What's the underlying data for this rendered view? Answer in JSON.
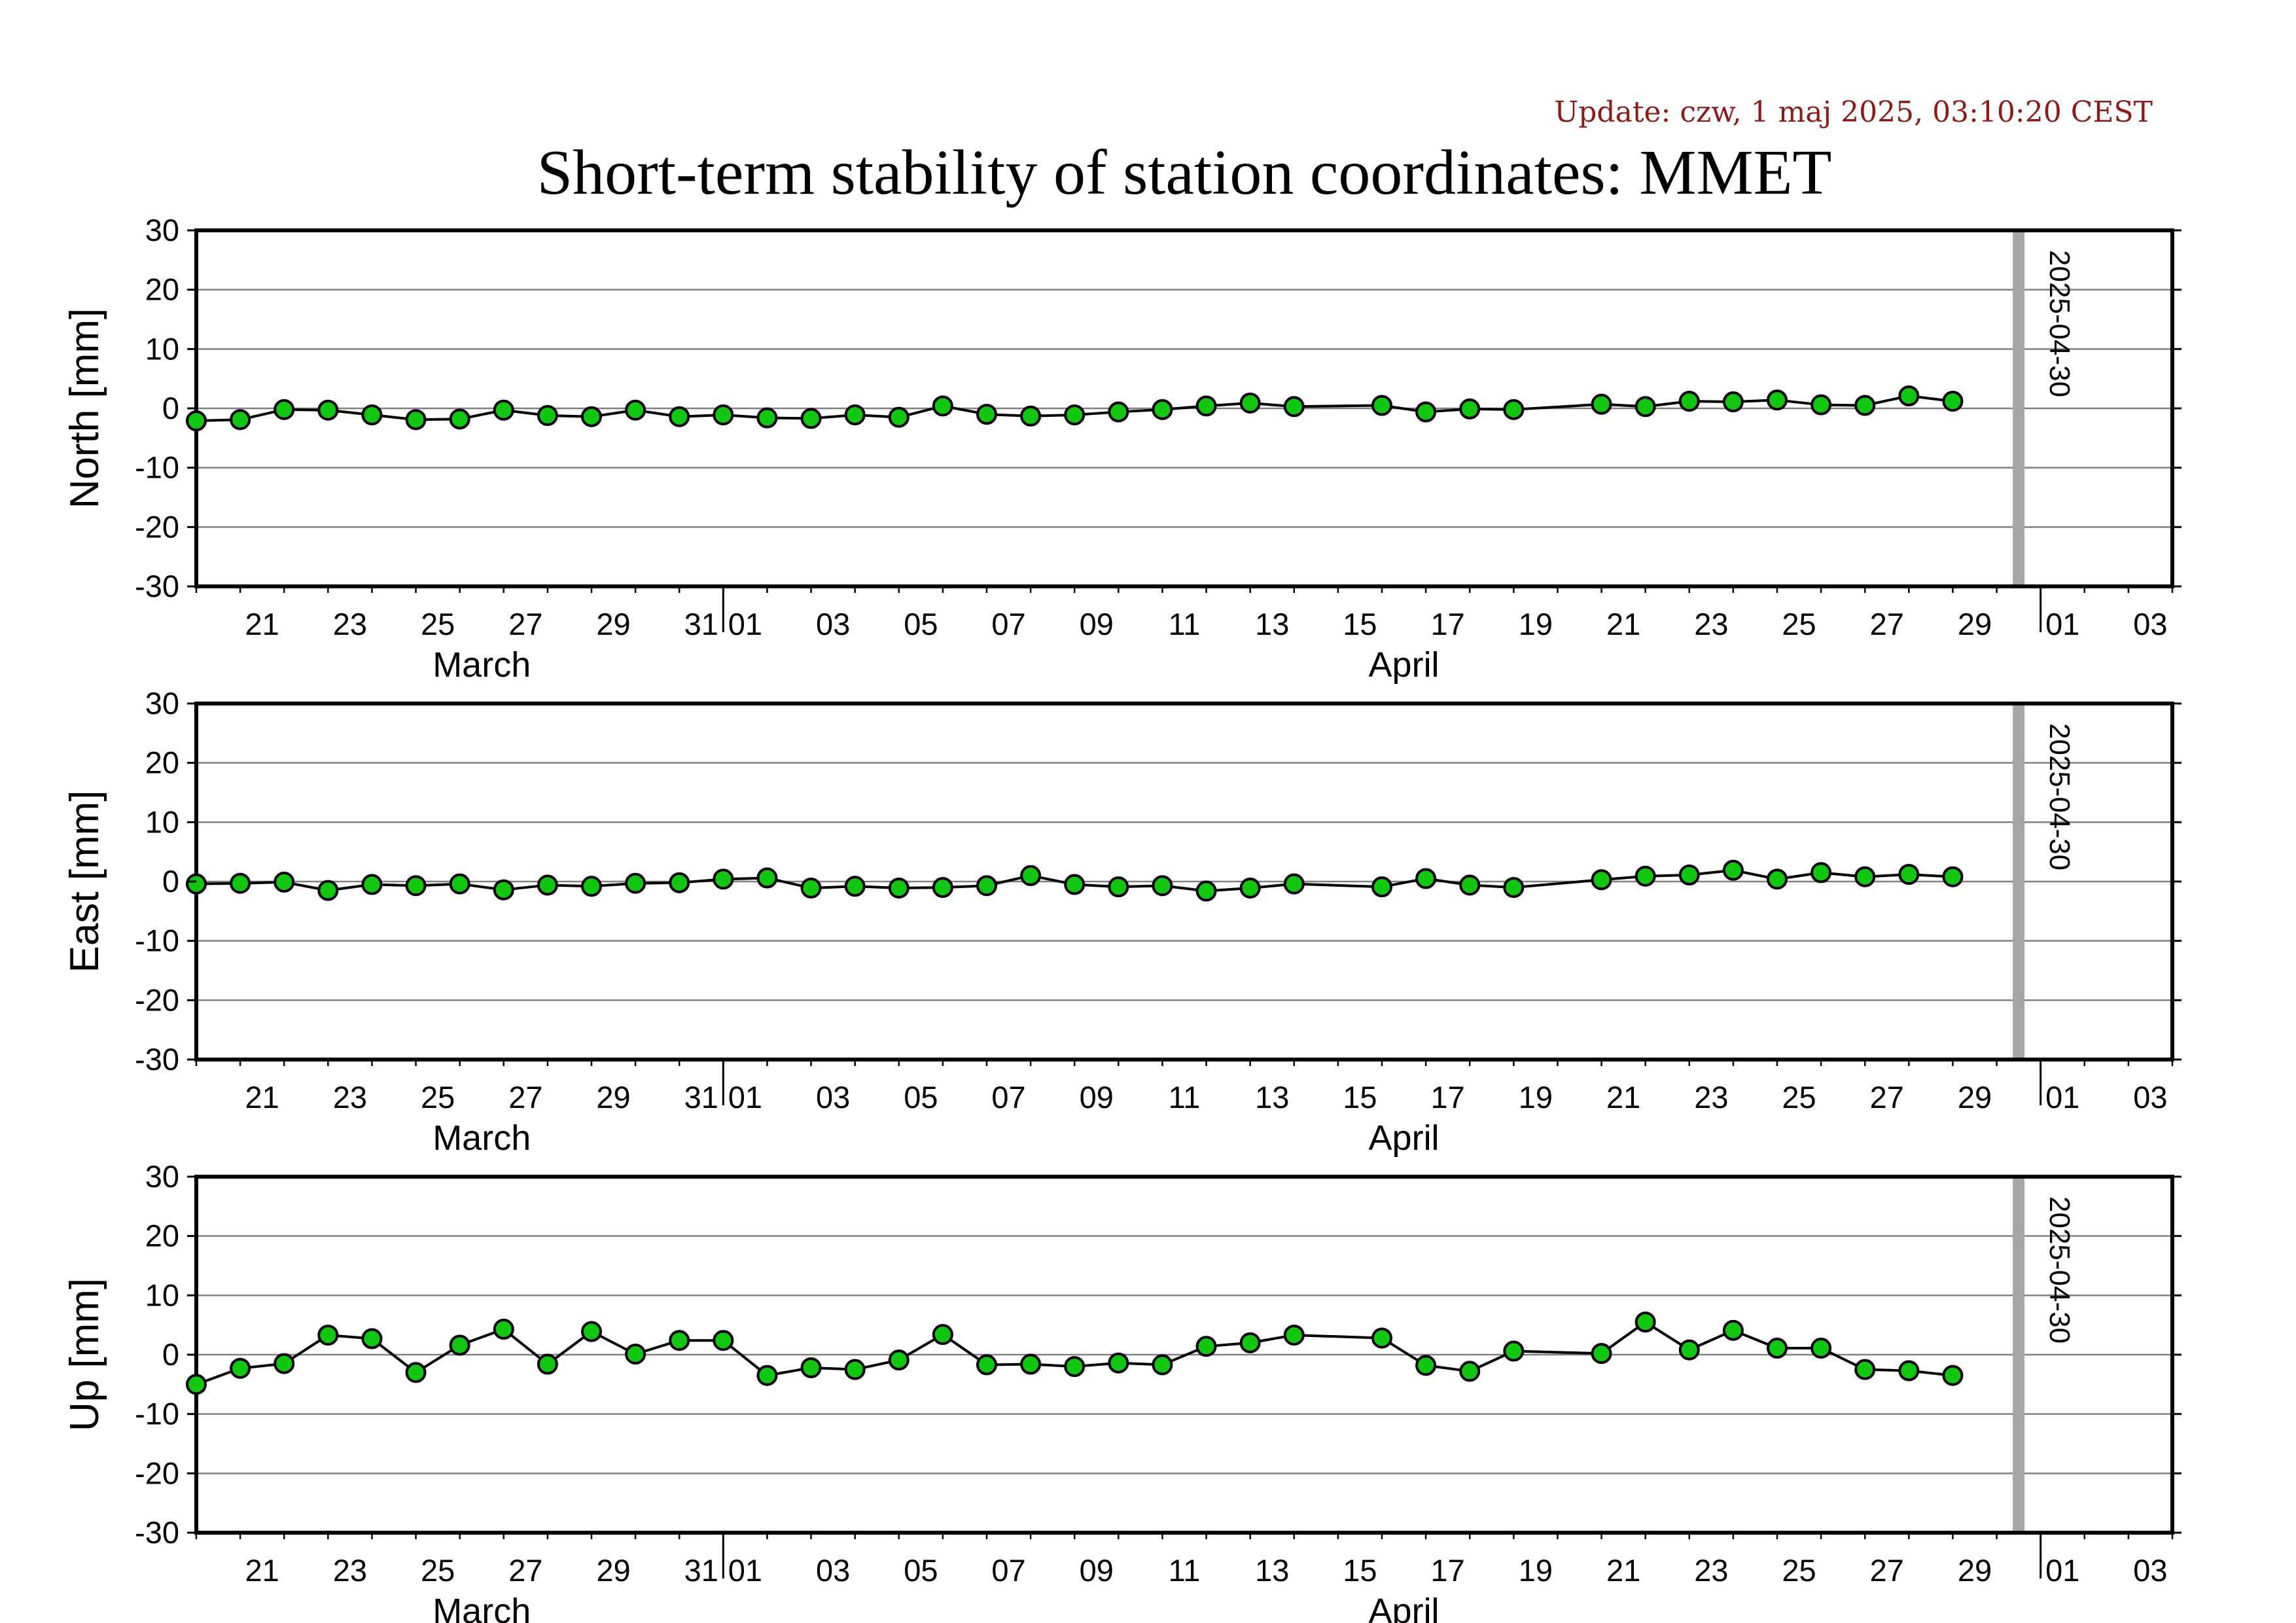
{
  "header": {
    "update": "Update: czw, 1 maj 2025, 03:10:20 CEST",
    "title": "Short-term stability of station coordinates: MMET"
  },
  "colors": {
    "marker_fill": "#11c711",
    "marker_stroke": "#000000",
    "line": "#000000",
    "gridline": "#808080",
    "date_marker": "#a6a6a6",
    "update_text": "#8b1a1a"
  },
  "axis": {
    "x_start": "2025-03-20",
    "x_end": "2025-05-04",
    "x_tick_dates": [
      "2025-03-21",
      "2025-03-23",
      "2025-03-25",
      "2025-03-27",
      "2025-03-29",
      "2025-03-31",
      "2025-04-01",
      "2025-04-03",
      "2025-04-05",
      "2025-04-07",
      "2025-04-09",
      "2025-04-11",
      "2025-04-13",
      "2025-04-15",
      "2025-04-17",
      "2025-04-19",
      "2025-04-21",
      "2025-04-23",
      "2025-04-25",
      "2025-04-27",
      "2025-04-29",
      "2025-05-01",
      "2025-05-03"
    ],
    "x_tick_labels": [
      "21",
      "23",
      "25",
      "27",
      "29",
      "31",
      "01",
      "03",
      "05",
      "07",
      "09",
      "11",
      "13",
      "15",
      "17",
      "19",
      "21",
      "23",
      "25",
      "27",
      "29",
      "01",
      "03"
    ],
    "month_boundaries": [
      "2025-04-01",
      "2025-05-01"
    ],
    "month_labels": [
      {
        "date": "2025-03-26",
        "text": "March"
      },
      {
        "date": "2025-04-16",
        "text": "April"
      }
    ],
    "ylim": [
      -30,
      30
    ],
    "y_ticks": [
      30,
      20,
      10,
      0,
      -10,
      -20,
      -30
    ],
    "y_tick_labels": [
      "30",
      "20",
      "10",
      "0",
      "-10",
      "-20",
      "-30"
    ],
    "date_marker": "2025-04-30",
    "date_marker_label": "2025-04-30"
  },
  "chart_data": [
    {
      "type": "line",
      "ylabel": "North [mm]",
      "ylim": [
        -30,
        30
      ],
      "grid": true,
      "x": [
        "2025-03-20",
        "2025-03-21",
        "2025-03-22",
        "2025-03-23",
        "2025-03-24",
        "2025-03-25",
        "2025-03-26",
        "2025-03-27",
        "2025-03-28",
        "2025-03-29",
        "2025-03-30",
        "2025-03-31",
        "2025-04-01",
        "2025-04-02",
        "2025-04-03",
        "2025-04-04",
        "2025-04-05",
        "2025-04-06",
        "2025-04-07",
        "2025-04-08",
        "2025-04-09",
        "2025-04-10",
        "2025-04-11",
        "2025-04-12",
        "2025-04-13",
        "2025-04-14",
        "2025-04-16",
        "2025-04-17",
        "2025-04-18",
        "2025-04-19",
        "2025-04-21",
        "2025-04-22",
        "2025-04-23",
        "2025-04-24",
        "2025-04-25",
        "2025-04-26",
        "2025-04-27",
        "2025-04-28",
        "2025-04-29"
      ],
      "values": [
        -2.1,
        -1.9,
        -0.2,
        -0.3,
        -1.1,
        -1.9,
        -1.8,
        -0.3,
        -1.2,
        -1.4,
        -0.3,
        -1.4,
        -1.1,
        -1.6,
        -1.7,
        -1.1,
        -1.5,
        0.4,
        -1.0,
        -1.3,
        -1.1,
        -0.6,
        -0.2,
        0.4,
        0.9,
        0.3,
        0.5,
        -0.6,
        -0.1,
        -0.2,
        0.7,
        0.3,
        1.2,
        1.1,
        1.4,
        0.6,
        0.5,
        2.1,
        1.2
      ]
    },
    {
      "type": "line",
      "ylabel": "East [mm]",
      "ylim": [
        -30,
        30
      ],
      "grid": true,
      "x": [
        "2025-03-20",
        "2025-03-21",
        "2025-03-22",
        "2025-03-23",
        "2025-03-24",
        "2025-03-25",
        "2025-03-26",
        "2025-03-27",
        "2025-03-28",
        "2025-03-29",
        "2025-03-30",
        "2025-03-31",
        "2025-04-01",
        "2025-04-02",
        "2025-04-03",
        "2025-04-04",
        "2025-04-05",
        "2025-04-06",
        "2025-04-07",
        "2025-04-08",
        "2025-04-09",
        "2025-04-10",
        "2025-04-11",
        "2025-04-12",
        "2025-04-13",
        "2025-04-14",
        "2025-04-16",
        "2025-04-17",
        "2025-04-18",
        "2025-04-19",
        "2025-04-21",
        "2025-04-22",
        "2025-04-23",
        "2025-04-24",
        "2025-04-25",
        "2025-04-26",
        "2025-04-27",
        "2025-04-28",
        "2025-04-29"
      ],
      "values": [
        -0.4,
        -0.3,
        -0.1,
        -1.5,
        -0.5,
        -0.7,
        -0.4,
        -1.4,
        -0.6,
        -0.8,
        -0.3,
        -0.2,
        0.4,
        0.6,
        -1.1,
        -0.8,
        -1.1,
        -1.0,
        -0.7,
        1.0,
        -0.5,
        -0.9,
        -0.7,
        -1.6,
        -1.1,
        -0.4,
        -0.9,
        0.5,
        -0.6,
        -1.0,
        0.3,
        0.9,
        1.1,
        1.9,
        0.4,
        1.5,
        0.8,
        1.2,
        0.8
      ]
    },
    {
      "type": "line",
      "ylabel": "Up [mm]",
      "ylim": [
        -30,
        30
      ],
      "grid": true,
      "x": [
        "2025-03-20",
        "2025-03-21",
        "2025-03-22",
        "2025-03-23",
        "2025-03-24",
        "2025-03-25",
        "2025-03-26",
        "2025-03-27",
        "2025-03-28",
        "2025-03-29",
        "2025-03-30",
        "2025-03-31",
        "2025-04-01",
        "2025-04-02",
        "2025-04-03",
        "2025-04-04",
        "2025-04-05",
        "2025-04-06",
        "2025-04-07",
        "2025-04-08",
        "2025-04-09",
        "2025-04-10",
        "2025-04-11",
        "2025-04-12",
        "2025-04-13",
        "2025-04-14",
        "2025-04-16",
        "2025-04-17",
        "2025-04-18",
        "2025-04-19",
        "2025-04-21",
        "2025-04-22",
        "2025-04-23",
        "2025-04-24",
        "2025-04-25",
        "2025-04-26",
        "2025-04-27",
        "2025-04-28",
        "2025-04-29"
      ],
      "values": [
        -5.0,
        -2.3,
        -1.5,
        3.3,
        2.7,
        -3.0,
        1.6,
        4.3,
        -1.6,
        3.9,
        0.1,
        2.4,
        2.4,
        -3.5,
        -2.2,
        -2.5,
        -0.9,
        3.4,
        -1.7,
        -1.6,
        -2.0,
        -1.4,
        -1.7,
        1.4,
        2.0,
        3.3,
        2.8,
        -1.8,
        -2.8,
        0.6,
        0.2,
        5.5,
        0.8,
        4.1,
        1.1,
        1.1,
        -2.5,
        -2.7,
        -3.5
      ]
    }
  ]
}
